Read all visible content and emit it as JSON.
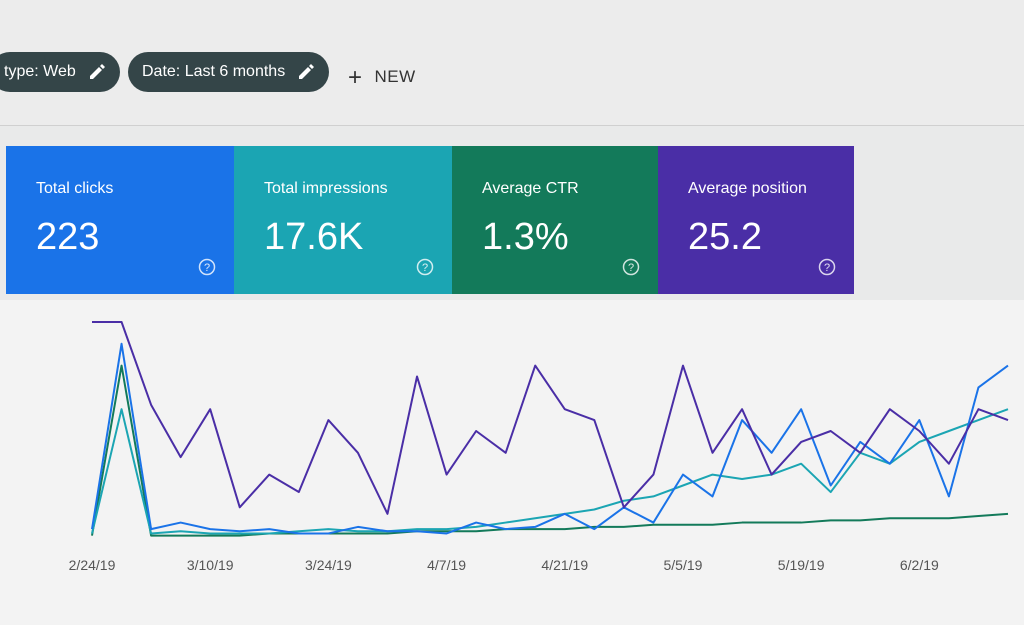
{
  "filters": {
    "chips": [
      "type: Web",
      "Date: Last 6 months"
    ],
    "new_button": "NEW"
  },
  "cards": [
    {
      "label": "Total clicks",
      "value": "223",
      "color": "#1a73e8"
    },
    {
      "label": "Total impressions",
      "value": "17.6K",
      "color": "#1ba5b3"
    },
    {
      "label": "Average CTR",
      "value": "1.3%",
      "color": "#137a5a"
    },
    {
      "label": "Average position",
      "value": "25.2",
      "color": "#4a2ea6"
    }
  ],
  "chart_data": {
    "type": "line",
    "xlim": [
      0,
      31
    ],
    "ylim": [
      0,
      100
    ],
    "xticks": [
      {
        "value": 0,
        "label": "2/24/19"
      },
      {
        "value": 4,
        "label": "3/10/19"
      },
      {
        "value": 8,
        "label": "3/24/19"
      },
      {
        "value": 12,
        "label": "4/7/19"
      },
      {
        "value": 16,
        "label": "4/21/19"
      },
      {
        "value": 20,
        "label": "5/5/19"
      },
      {
        "value": 24,
        "label": "5/19/19"
      },
      {
        "value": 28,
        "label": "6/2/19"
      }
    ],
    "series": [
      {
        "color": "#4a2ea6",
        "values": [
          100,
          100,
          62,
          38,
          60,
          15,
          30,
          22,
          55,
          40,
          12,
          75,
          30,
          50,
          40,
          80,
          60,
          55,
          15,
          30,
          80,
          40,
          60,
          30,
          45,
          50,
          40,
          60,
          50,
          35,
          60,
          55
        ]
      },
      {
        "color": "#1a73e8",
        "values": [
          5,
          90,
          5,
          8,
          5,
          4,
          5,
          3,
          3,
          6,
          4,
          4,
          3,
          8,
          5,
          6,
          12,
          5,
          15,
          8,
          30,
          20,
          55,
          40,
          60,
          25,
          45,
          35,
          55,
          20,
          70,
          80
        ]
      },
      {
        "color": "#1ba5b3",
        "values": [
          3,
          60,
          3,
          4,
          3,
          3,
          3,
          4,
          5,
          4,
          4,
          5,
          5,
          6,
          8,
          10,
          12,
          14,
          18,
          20,
          25,
          30,
          28,
          30,
          35,
          22,
          40,
          35,
          45,
          50,
          55,
          60
        ]
      },
      {
        "color": "#137a5a",
        "values": [
          2,
          80,
          2,
          2,
          2,
          2,
          3,
          3,
          3,
          3,
          3,
          4,
          4,
          4,
          5,
          5,
          5,
          6,
          6,
          7,
          7,
          7,
          8,
          8,
          8,
          9,
          9,
          10,
          10,
          10,
          11,
          12
        ]
      }
    ]
  }
}
